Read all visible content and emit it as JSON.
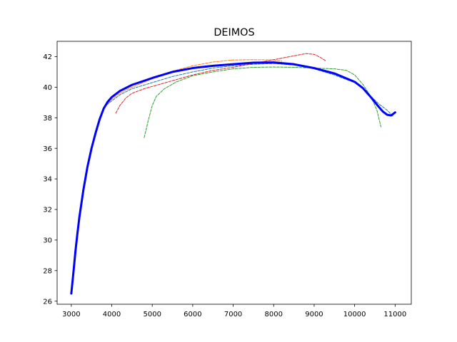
{
  "chart_data": {
    "type": "line",
    "title": "DEIMOS",
    "xlabel": "",
    "ylabel": "",
    "xlim": [
      2650,
      11400
    ],
    "ylim": [
      25.8,
      43.0
    ],
    "xticks": [
      3000,
      4000,
      5000,
      6000,
      7000,
      8000,
      9000,
      10000,
      11000
    ],
    "yticks": [
      26,
      28,
      30,
      32,
      34,
      36,
      38,
      40,
      42
    ],
    "grid": false,
    "legend": "none",
    "series": [
      {
        "color": "#1f77b4",
        "style": "dashed",
        "x": [
          3800,
          4000,
          4200,
          4500,
          5000,
          5500,
          6000,
          6500,
          7000,
          7500,
          8000,
          8500,
          9000,
          9500,
          10000,
          10200,
          10400,
          10600,
          10800,
          10950
        ],
        "y": [
          38.7,
          39.1,
          39.5,
          39.9,
          40.3,
          40.7,
          41.0,
          41.25,
          41.4,
          41.5,
          41.55,
          41.45,
          41.2,
          40.8,
          40.3,
          39.9,
          39.4,
          38.9,
          38.5,
          38.1
        ]
      },
      {
        "color": "#ff7f0e",
        "style": "dashed",
        "x": [
          3850,
          4000,
          4200,
          4500,
          5000,
          5500,
          6000,
          6500,
          7000,
          7500,
          8000,
          8200
        ],
        "y": [
          38.8,
          39.2,
          39.6,
          40.0,
          40.55,
          41.05,
          41.4,
          41.65,
          41.78,
          41.8,
          41.78,
          41.7
        ]
      },
      {
        "color": "#2ca02c",
        "style": "dashed",
        "x": [
          4800,
          4900,
          5000,
          5100,
          5300,
          5600,
          6000,
          6500,
          7000,
          7500,
          8000,
          8500,
          9000,
          9500,
          9800,
          10000,
          10200,
          10400,
          10550,
          10650
        ],
        "y": [
          36.7,
          37.8,
          38.8,
          39.4,
          39.9,
          40.35,
          40.75,
          41.0,
          41.2,
          41.3,
          41.32,
          41.3,
          41.25,
          41.2,
          41.1,
          40.8,
          40.2,
          39.4,
          38.5,
          37.4
        ]
      },
      {
        "color": "#d62728",
        "style": "dashed",
        "x": [
          4100,
          4200,
          4350,
          4500,
          4800,
          5200,
          5600,
          6000,
          6500,
          7000,
          7500,
          8000,
          8500,
          8800,
          9000,
          9150,
          9300
        ],
        "y": [
          38.3,
          38.8,
          39.3,
          39.6,
          39.9,
          40.2,
          40.5,
          40.8,
          41.1,
          41.3,
          41.55,
          41.8,
          42.05,
          42.2,
          42.15,
          41.95,
          41.7
        ]
      },
      {
        "color": "#0000ff",
        "style": "solid",
        "x": [
          3000,
          3050,
          3100,
          3150,
          3200,
          3300,
          3400,
          3500,
          3600,
          3700,
          3800,
          3900,
          4000,
          4200,
          4500,
          5000,
          5500,
          6000,
          6500,
          7000,
          7500,
          8000,
          8500,
          9000,
          9500,
          10000,
          10200,
          10400,
          10600,
          10700,
          10800,
          10900,
          11000
        ],
        "y": [
          26.5,
          27.8,
          29.2,
          30.4,
          31.5,
          33.3,
          34.8,
          36.0,
          37.0,
          37.9,
          38.6,
          39.05,
          39.35,
          39.75,
          40.15,
          40.6,
          41.0,
          41.25,
          41.4,
          41.5,
          41.6,
          41.62,
          41.5,
          41.25,
          40.9,
          40.35,
          39.95,
          39.35,
          38.7,
          38.4,
          38.2,
          38.15,
          38.35
        ]
      }
    ]
  }
}
